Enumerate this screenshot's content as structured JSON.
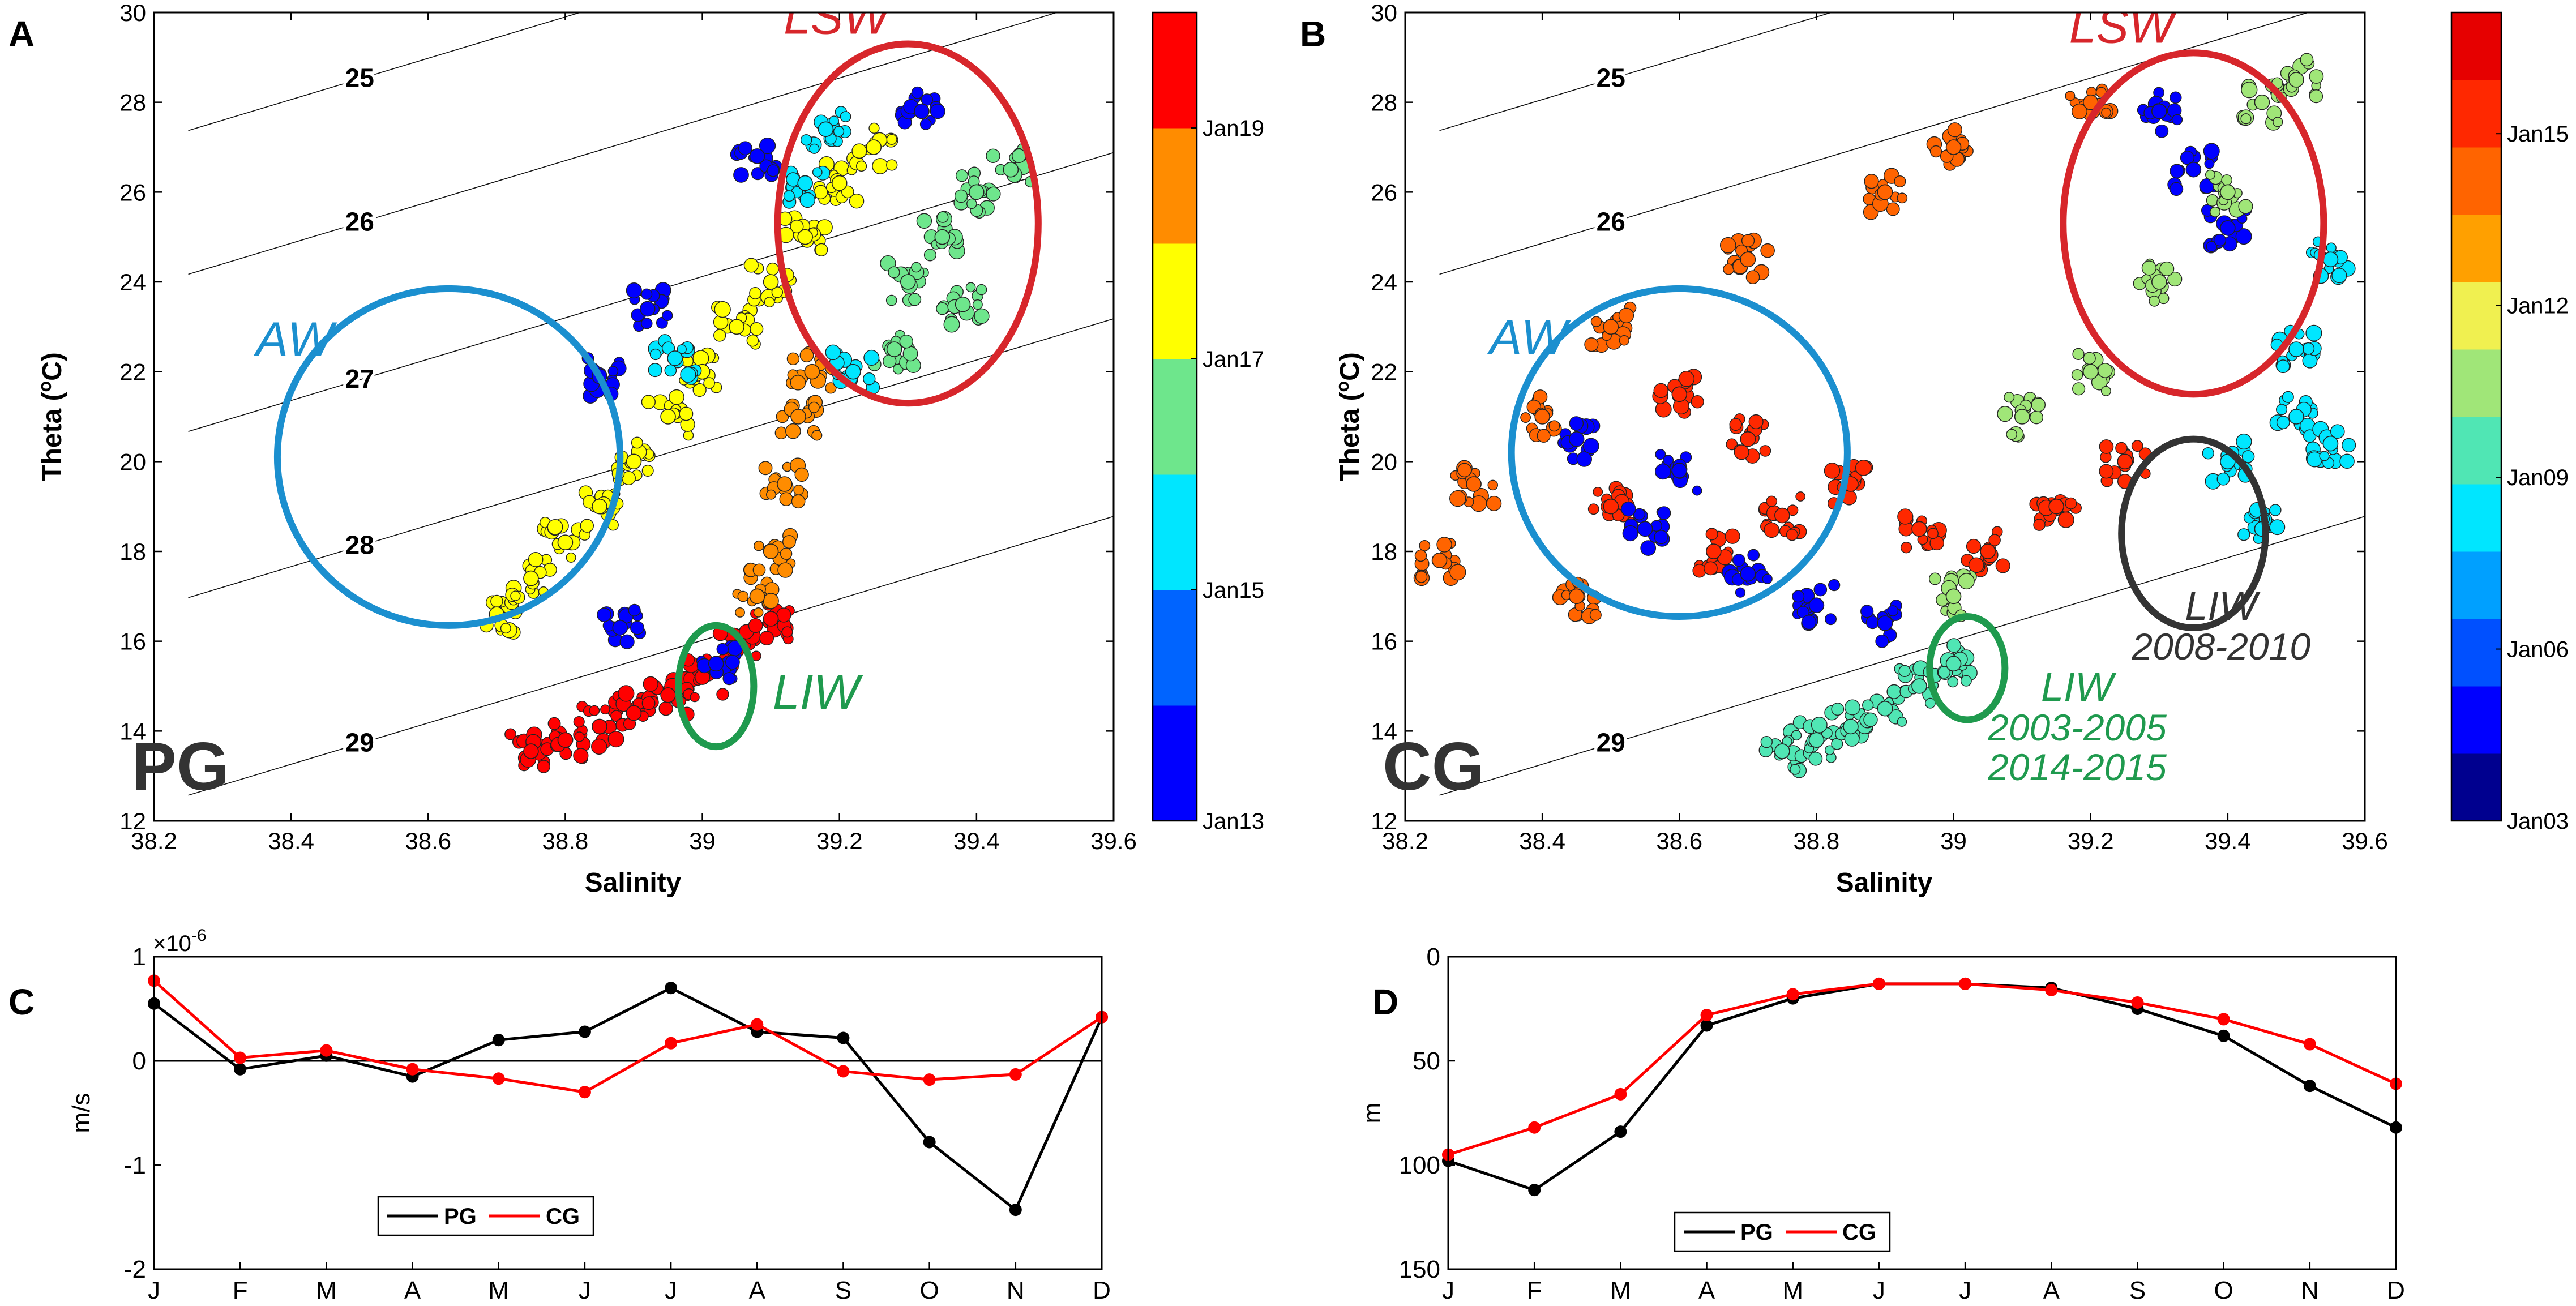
{
  "chart_data": [
    {
      "panel": "A",
      "type": "scatter",
      "region_label": "PG",
      "xlabel": "Salinity",
      "ylabel": "Theta (°C)",
      "ylabel_main": "Theta (",
      "ylabel_sup": "o",
      "ylabel_end": "C)",
      "xlim": [
        38.2,
        39.6
      ],
      "ylim": [
        12,
        30
      ],
      "xticks": [
        "38.2",
        "38.4",
        "38.6",
        "38.8",
        "39",
        "39.2",
        "39.4",
        "39.6"
      ],
      "yticks": [
        "12",
        "14",
        "16",
        "18",
        "20",
        "22",
        "24",
        "26",
        "28",
        "30"
      ],
      "isopycnals": [
        {
          "label": "25",
          "s0": 38.3,
          "t0": 27.6
        },
        {
          "label": "26",
          "s0": 38.3,
          "t0": 24.4
        },
        {
          "label": "27",
          "s0": 38.3,
          "t0": 20.9
        },
        {
          "label": "28",
          "s0": 38.3,
          "t0": 17.2
        },
        {
          "label": "29",
          "s0": 38.3,
          "t0": 12.8
        }
      ],
      "colorbar": {
        "colors": [
          "#0000ff",
          "#0064ff",
          "#00e6ff",
          "#6ee68c",
          "#ffff00",
          "#ff8c00",
          "#ff0000"
        ],
        "tick_labels": [
          "Jan13",
          "Jan15",
          "Jan17",
          "Jan19"
        ]
      },
      "annotations": [
        {
          "text": "LSW",
          "color": "#d7262b",
          "ellipse": {
            "cs": 39.3,
            "ct": 25.3,
            "rs": 0.19,
            "rt": 4.0,
            "rot": 0
          }
        },
        {
          "text": "AW",
          "color": "#1b8fcf",
          "ellipse": {
            "cs": 38.63,
            "ct": 20.1,
            "rs": 0.25,
            "rt": 3.75,
            "rot": 0
          }
        },
        {
          "text": "LIW",
          "color": "#1f9a4e",
          "ellipse": {
            "cs": 39.02,
            "ct": 15.0,
            "rs": 0.055,
            "rt": 1.35,
            "rot": 0
          }
        }
      ],
      "clusters": [
        {
          "name": "deep branch",
          "color_index": 6,
          "points": [
            [
              38.75,
              13.55
            ],
            [
              38.8,
              13.8
            ],
            [
              38.85,
              14.1
            ],
            [
              38.9,
              14.4
            ],
            [
              38.95,
              14.8
            ],
            [
              39.0,
              15.2
            ],
            [
              39.05,
              15.8
            ],
            [
              39.1,
              16.5
            ]
          ]
        },
        {
          "name": "yellow cloud",
          "color_index": 4,
          "points": [
            [
              38.7,
              16.6
            ],
            [
              38.75,
              17.4
            ],
            [
              38.8,
              18.2
            ],
            [
              38.85,
              19.0
            ],
            [
              38.9,
              20.0
            ],
            [
              38.95,
              21.0
            ],
            [
              39.0,
              22.0
            ],
            [
              39.05,
              23.0
            ],
            [
              39.1,
              24.0
            ],
            [
              39.15,
              25.0
            ],
            [
              39.2,
              26.2
            ],
            [
              39.25,
              27.0
            ]
          ]
        },
        {
          "name": "orange band",
          "color_index": 5,
          "points": [
            [
              39.08,
              17.0
            ],
            [
              39.1,
              18.0
            ],
            [
              39.12,
              19.5
            ],
            [
              39.14,
              21.0
            ],
            [
              39.16,
              22.0
            ]
          ]
        },
        {
          "name": "green surface",
          "color_index": 3,
          "points": [
            [
              39.3,
              24.0
            ],
            [
              39.35,
              25.0
            ],
            [
              39.4,
              26.0
            ],
            [
              39.45,
              26.5
            ],
            [
              39.28,
              22.5
            ],
            [
              39.38,
              23.5
            ]
          ]
        },
        {
          "name": "cyan patches",
          "color_index": 2,
          "points": [
            [
              38.96,
              22.3
            ],
            [
              39.22,
              22.0
            ],
            [
              39.18,
              27.4
            ],
            [
              39.15,
              26.2
            ]
          ]
        },
        {
          "name": "blue outliers",
          "color_index": 0,
          "points": [
            [
              38.92,
              23.4
            ],
            [
              38.85,
              21.9
            ],
            [
              39.32,
              27.8
            ],
            [
              38.88,
              16.3
            ],
            [
              39.02,
              15.5
            ],
            [
              39.08,
              26.8
            ]
          ]
        }
      ]
    },
    {
      "panel": "B",
      "type": "scatter",
      "region_label": "CG",
      "xlabel": "Salinity",
      "ylabel": "Theta (°C)",
      "ylabel_main": "Theta (",
      "ylabel_sup": "o",
      "ylabel_end": "C)",
      "xlim": [
        38.2,
        39.6
      ],
      "ylim": [
        12,
        30
      ],
      "xticks": [
        "38.2",
        "38.4",
        "38.6",
        "38.8",
        "39",
        "39.2",
        "39.4",
        "39.6"
      ],
      "yticks": [
        "12",
        "14",
        "16",
        "18",
        "20",
        "22",
        "24",
        "26",
        "28",
        "30"
      ],
      "isopycnals": [
        {
          "label": "25",
          "s0": 38.3,
          "t0": 27.6
        },
        {
          "label": "26",
          "s0": 38.3,
          "t0": 24.4
        },
        {
          "label": "29",
          "s0": 38.3,
          "t0": 12.8
        }
      ],
      "colorbar": {
        "colors": [
          "#00008f",
          "#0000ff",
          "#0050ff",
          "#00a0ff",
          "#00e6ff",
          "#50e6b4",
          "#a0e678",
          "#f0f050",
          "#ffa000",
          "#ff6400",
          "#ff2800",
          "#e60000"
        ],
        "tick_labels": [
          "Jan03",
          "Jan06",
          "Jan09",
          "Jan12",
          "Jan15"
        ]
      },
      "annotations": [
        {
          "text": "LSW",
          "color": "#d7262b",
          "ellipse": {
            "cs": 39.35,
            "ct": 25.3,
            "rs": 0.19,
            "rt": 3.8,
            "rot": 0
          }
        },
        {
          "text": "AW",
          "color": "#1b8fcf",
          "ellipse": {
            "cs": 38.6,
            "ct": 20.2,
            "rs": 0.245,
            "rt": 3.65,
            "rot": 0
          }
        },
        {
          "text": "LIW",
          "color": "#1f9a4e",
          "ellipse": {
            "cs": 39.02,
            "ct": 15.4,
            "rs": 0.055,
            "rt": 1.15,
            "rot": 0
          }
        },
        {
          "text": "LIW",
          "color": "#333333",
          "ellipse": {
            "cs": 39.35,
            "ct": 18.4,
            "rs": 0.105,
            "rt": 2.1,
            "rot": 0
          }
        }
      ],
      "annotation_notes": [
        {
          "lines": [
            "LIW",
            "2003-2005",
            "2014-2015"
          ],
          "color": "#1f9a4e",
          "s": 39.04,
          "t": 14.8
        },
        {
          "lines": [
            "LIW",
            "2008-2010"
          ],
          "color": "#333333",
          "s": 39.25,
          "t": 16.6
        }
      ],
      "clusters": [
        {
          "name": "deep branch",
          "color_index": 5,
          "points": [
            [
              38.75,
              13.55
            ],
            [
              38.8,
              13.8
            ],
            [
              38.85,
              14.1
            ],
            [
              38.9,
              14.5
            ],
            [
              38.95,
              15.0
            ],
            [
              39.0,
              15.5
            ]
          ]
        },
        {
          "name": "red core",
          "color_index": 10,
          "points": [
            [
              38.65,
              18.0
            ],
            [
              38.75,
              18.8
            ],
            [
              38.85,
              19.5
            ],
            [
              38.95,
              18.5
            ],
            [
              39.05,
              18.0
            ],
            [
              39.15,
              19.0
            ],
            [
              39.25,
              20.0
            ],
            [
              38.7,
              20.5
            ],
            [
              38.6,
              21.5
            ],
            [
              38.5,
              19.0
            ]
          ]
        },
        {
          "name": "blue mid",
          "color_index": 1,
          "points": [
            [
              38.55,
              18.5
            ],
            [
              38.6,
              19.8
            ],
            [
              38.7,
              17.5
            ],
            [
              38.8,
              16.8
            ],
            [
              38.9,
              16.4
            ],
            [
              38.45,
              20.5
            ],
            [
              39.35,
              26.5
            ],
            [
              39.4,
              25.2
            ],
            [
              39.3,
              27.8
            ]
          ]
        },
        {
          "name": "orange scatter",
          "color_index": 9,
          "points": [
            [
              38.3,
              19.5
            ],
            [
              38.4,
              21.0
            ],
            [
              38.5,
              23.0
            ],
            [
              38.7,
              24.5
            ],
            [
              38.9,
              26.0
            ],
            [
              39.0,
              27.0
            ],
            [
              39.2,
              28.0
            ],
            [
              38.25,
              17.8
            ],
            [
              38.45,
              17.0
            ]
          ]
        },
        {
          "name": "green surface",
          "color_index": 6,
          "points": [
            [
              39.3,
              24.0
            ],
            [
              39.4,
              26.0
            ],
            [
              39.45,
              28.0
            ],
            [
              39.5,
              28.5
            ],
            [
              39.2,
              22.0
            ],
            [
              39.1,
              21.0
            ],
            [
              39.0,
              17.0
            ]
          ]
        },
        {
          "name": "cyan tail",
          "color_index": 4,
          "points": [
            [
              39.4,
              20.0
            ],
            [
              39.5,
              21.0
            ],
            [
              39.55,
              20.4
            ],
            [
              39.45,
              18.5
            ],
            [
              39.5,
              22.5
            ],
            [
              39.55,
              24.5
            ]
          ]
        }
      ]
    },
    {
      "panel": "C",
      "type": "line",
      "ylabel": "m/s",
      "exponent_label": "×10",
      "exponent_power": "-6",
      "categories": [
        "J",
        "F",
        "M",
        "A",
        "M",
        "J",
        "J",
        "A",
        "S",
        "O",
        "N",
        "D"
      ],
      "ylim": [
        -2,
        1
      ],
      "yticks": [
        "-2",
        "-1",
        "0",
        "1"
      ],
      "zero_line": true,
      "legend": "bottom-left",
      "series": [
        {
          "name": "PG",
          "color": "#000000",
          "values": [
            0.55,
            -0.08,
            0.05,
            -0.15,
            0.2,
            0.28,
            0.7,
            0.28,
            0.22,
            -0.78,
            -1.43,
            0.42
          ]
        },
        {
          "name": "CG",
          "color": "#ff0000",
          "values": [
            0.77,
            0.03,
            0.1,
            -0.08,
            -0.17,
            -0.3,
            0.17,
            0.35,
            -0.1,
            -0.18,
            -0.13,
            0.42
          ]
        }
      ]
    },
    {
      "panel": "D",
      "type": "line",
      "ylabel": "m",
      "categories": [
        "J",
        "F",
        "M",
        "A",
        "M",
        "J",
        "J",
        "A",
        "S",
        "O",
        "N",
        "D"
      ],
      "ylim": [
        0,
        150
      ],
      "y_reversed": true,
      "yticks": [
        "0",
        "50",
        "100",
        "150"
      ],
      "legend": "bottom-left",
      "series": [
        {
          "name": "PG",
          "color": "#000000",
          "values": [
            98,
            112,
            84,
            33,
            20,
            13,
            13,
            15,
            25,
            38,
            62,
            82
          ]
        },
        {
          "name": "CG",
          "color": "#ff0000",
          "values": [
            95,
            82,
            66,
            28,
            18,
            13,
            13,
            16,
            22,
            30,
            42,
            61
          ]
        }
      ]
    }
  ]
}
